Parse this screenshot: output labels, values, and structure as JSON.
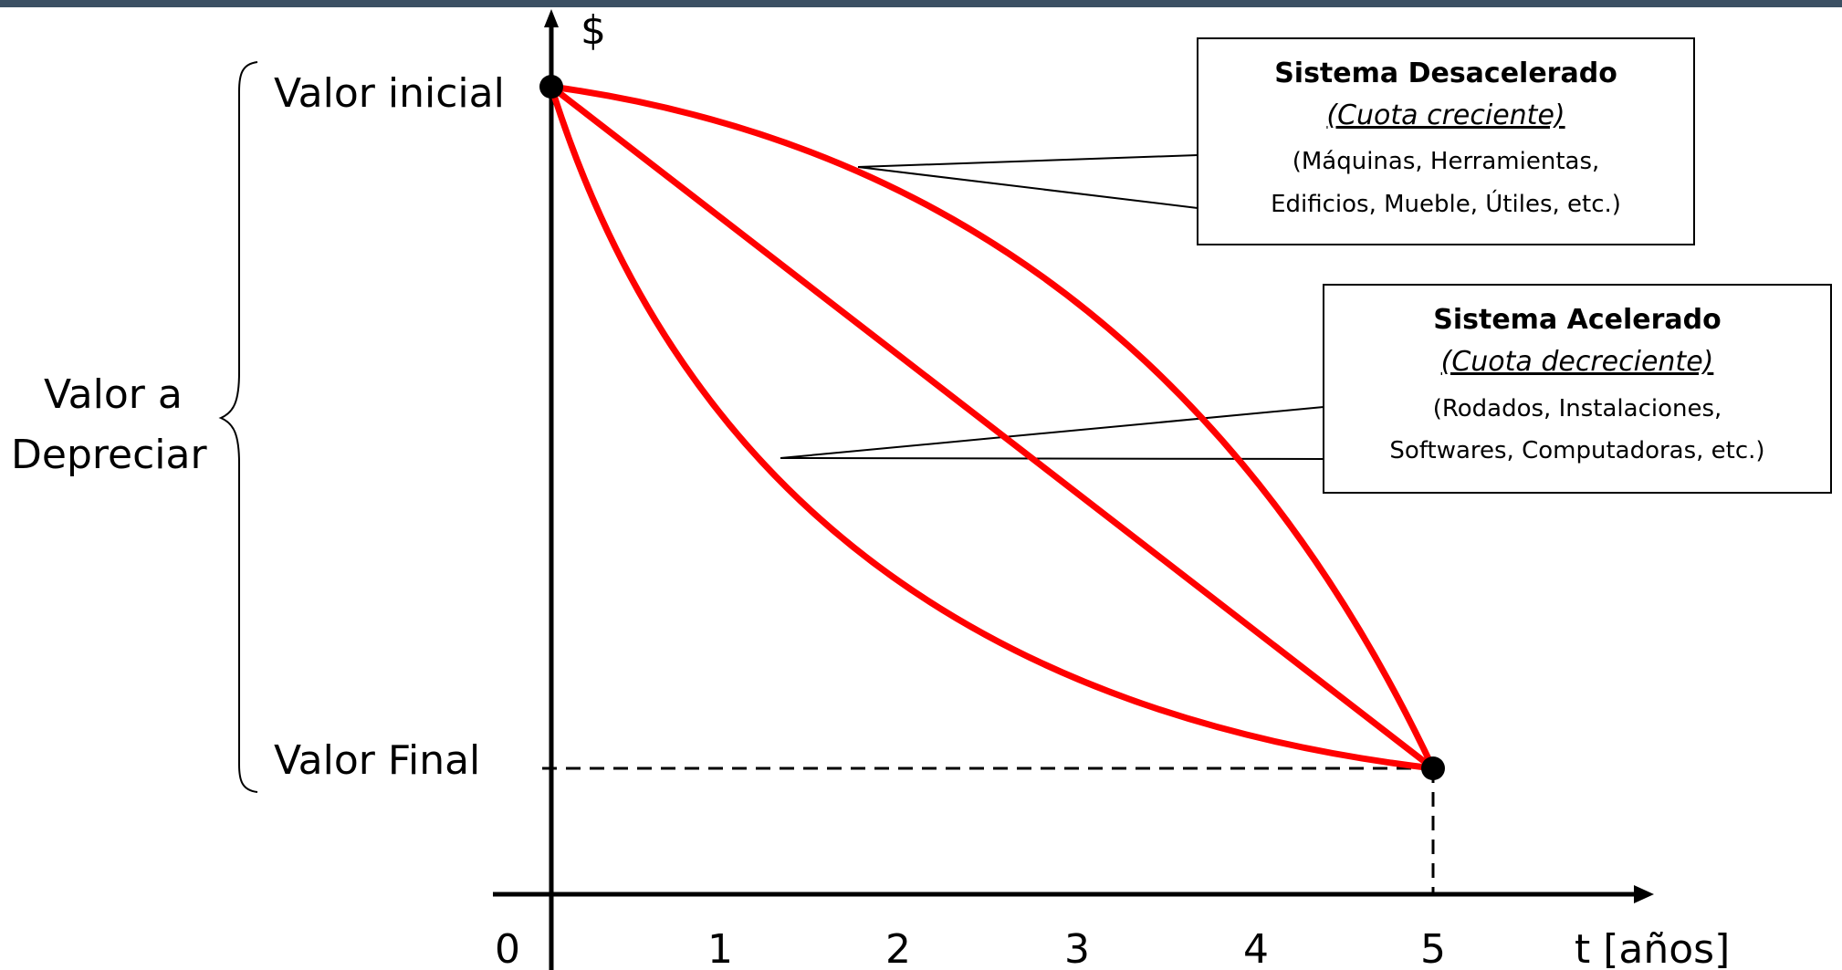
{
  "chart_data": {
    "type": "line",
    "y_axis_label": "$",
    "x_axis_label": "t [años]",
    "origin_label": "0",
    "x_ticks": [
      "1",
      "2",
      "3",
      "4",
      "5"
    ],
    "y_labels": {
      "initial": "Valor inicial",
      "final": "Valor Final"
    },
    "brace_label": [
      "Valor a",
      "Depreciar"
    ],
    "series": [
      {
        "id": "decelerated",
        "shape": "concave",
        "color": "#ff0000"
      },
      {
        "id": "linear",
        "shape": "linear",
        "color": "#ff0000"
      },
      {
        "id": "accelerated",
        "shape": "convex",
        "color": "#ff0000"
      }
    ]
  },
  "callouts": {
    "decelerated": {
      "title": "Sistema Desacelerado",
      "subtitle": "(Cuota creciente)",
      "line1": "(Máquinas, Herramientas,",
      "line2": "Edificios, Mueble, Útiles, etc.)"
    },
    "accelerated": {
      "title": "Sistema Acelerado",
      "subtitle": "(Cuota decreciente)",
      "line1": "(Rodados, Instalaciones,",
      "line2": "Softwares, Computadoras, etc.)"
    }
  },
  "colors": {
    "curve": "#ff0000",
    "axis": "#000000",
    "header_bar": "#3b5063"
  }
}
